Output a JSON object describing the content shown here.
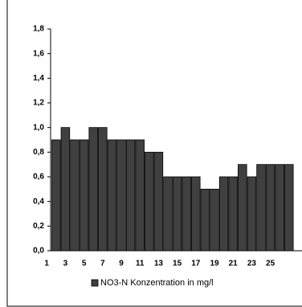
{
  "chart_data": {
    "type": "bar",
    "categories": [
      "1",
      null,
      "3",
      null,
      "5",
      null,
      "7",
      null,
      "9",
      null,
      "11",
      null,
      "13",
      null,
      "15",
      null,
      "17",
      null,
      "19",
      null,
      "21",
      null,
      "23",
      null,
      "25",
      null,
      null
    ],
    "series": [
      {
        "name": "NO3-N Konzentration in mg/l",
        "color": "#404040",
        "values": [
          null,
          0.9,
          1.0,
          0.9,
          0.9,
          1.0,
          1.0,
          0.9,
          0.9,
          0.9,
          0.9,
          0.8,
          0.8,
          0.6,
          0.6,
          0.6,
          0.6,
          0.5,
          0.5,
          0.6,
          0.6,
          0.7,
          0.6,
          0.7,
          0.7,
          0.7,
          0.7
        ]
      }
    ],
    "ylim": [
      0,
      1.8
    ],
    "yticks": [
      {
        "value": 0,
        "label": "0,0"
      },
      {
        "value": 0.2,
        "label": "0,2"
      },
      {
        "value": 0.4,
        "label": "0,4"
      },
      {
        "value": 0.6,
        "label": "0,6"
      },
      {
        "value": 0.8,
        "label": "0,8"
      },
      {
        "value": 1.0,
        "label": "1,0"
      },
      {
        "value": 1.2,
        "label": "1,2"
      },
      {
        "value": 1.4,
        "label": "1,4"
      },
      {
        "value": 1.6,
        "label": "1,6"
      },
      {
        "value": 1.8,
        "label": "1,8"
      }
    ],
    "grid": false,
    "legend": "bottom"
  }
}
